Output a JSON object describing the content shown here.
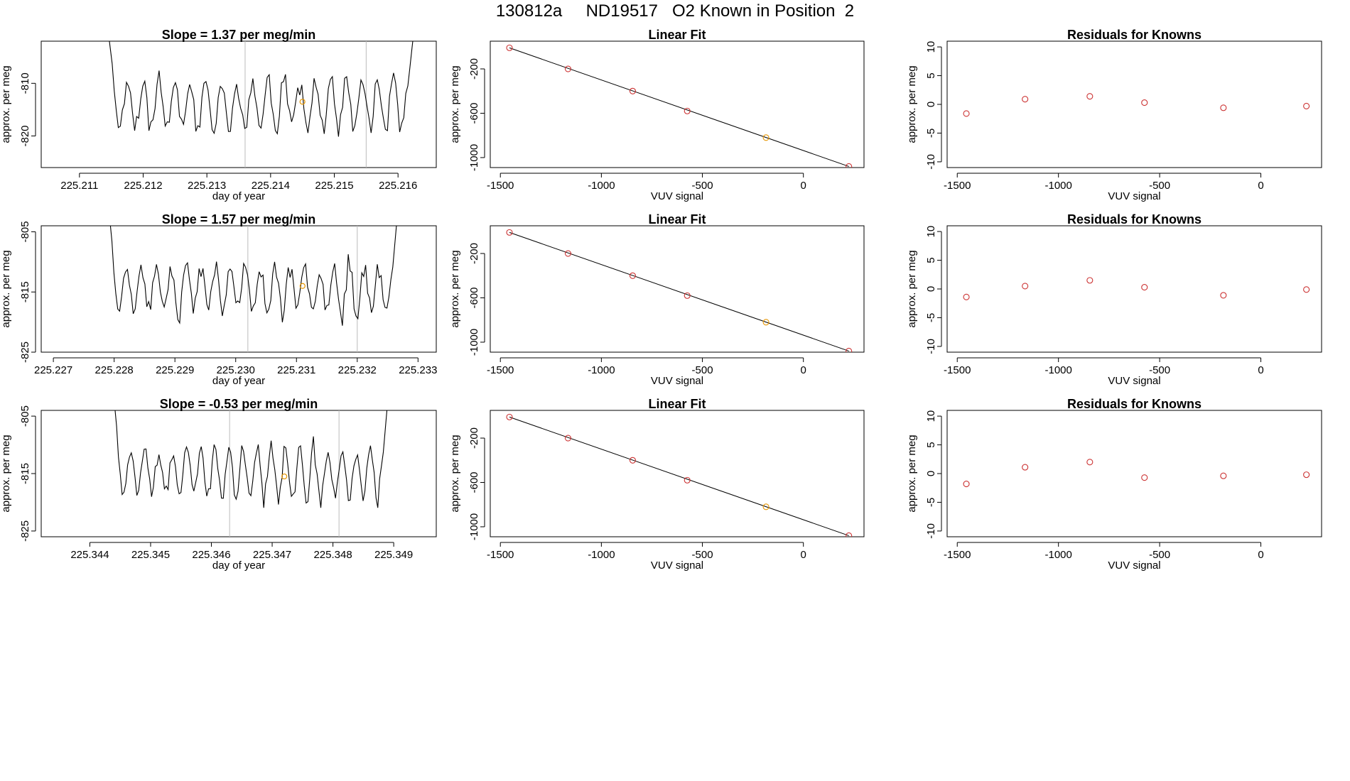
{
  "title": "130812a     ND19517   O2 Known in Position  2",
  "colors": {
    "line": "#000000",
    "fit_points": "#cc3333",
    "highlight": "#e69500",
    "vline": "#bbbbbb"
  },
  "labels": {
    "time_xlabel": "day of year",
    "ylabel": "approx. per meg",
    "vuv_xlabel": "VUV signal",
    "linear_fit_title": "Linear Fit",
    "residuals_title": "Residuals for Knowns"
  },
  "chart_data": [
    {
      "type": "line",
      "panel": "row1-timeseries",
      "title": "Slope =  1.37  per meg/min",
      "xlabel": "day of year",
      "ylabel": "approx. per meg",
      "xlim": [
        225.2104,
        225.2166
      ],
      "ylim": [
        -826,
        -802
      ],
      "xticks": [
        225.211,
        225.212,
        225.213,
        225.214,
        225.215,
        225.216
      ],
      "xtick_labels": [
        "225.211",
        "225.212",
        "225.213",
        "225.214",
        "225.215",
        "225.216"
      ],
      "yticks": [
        -820,
        -810
      ],
      "ytick_labels": [
        "-820",
        "-810"
      ],
      "vlines": [
        225.2136,
        225.2155
      ],
      "highlight_point": [
        225.2145,
        -813.5
      ],
      "x_start": 225.21145,
      "x_end": 225.21625,
      "y_start": -800,
      "y_end": -800,
      "seed": 11
    },
    {
      "type": "line",
      "panel": "row2-timeseries",
      "title": "Slope =  1.57  per meg/min",
      "xlabel": "day of year",
      "ylabel": "approx. per meg",
      "xlim": [
        225.2268,
        225.2333
      ],
      "ylim": [
        -825,
        -804
      ],
      "xticks": [
        225.227,
        225.228,
        225.229,
        225.23,
        225.231,
        225.232,
        225.233
      ],
      "xtick_labels": [
        "225.227",
        "225.228",
        "225.229",
        "225.230",
        "225.231",
        "225.232",
        "225.233"
      ],
      "yticks": [
        -825,
        -815,
        -805
      ],
      "ytick_labels": [
        "-825",
        "-815",
        "-805"
      ],
      "vlines": [
        225.2302,
        225.232
      ],
      "highlight_point": [
        225.2311,
        -814
      ],
      "x_start": 225.2279,
      "x_end": 225.23268,
      "y_start": -800,
      "y_end": -800,
      "seed": 23
    },
    {
      "type": "line",
      "panel": "row3-timeseries",
      "title": "Slope =  -0.53  per meg/min",
      "xlabel": "day of year",
      "ylabel": "approx. per meg",
      "xlim": [
        225.3432,
        225.3497
      ],
      "ylim": [
        -826,
        -804
      ],
      "xticks": [
        225.344,
        225.345,
        225.346,
        225.347,
        225.348,
        225.349
      ],
      "xtick_labels": [
        "225.344",
        "225.345",
        "225.346",
        "225.347",
        "225.348",
        "225.349"
      ],
      "yticks": [
        -825,
        -815,
        -805
      ],
      "ytick_labels": [
        "-825",
        "-815",
        "-805"
      ],
      "vlines": [
        225.3463,
        225.3481
      ],
      "highlight_point": [
        225.3472,
        -815.5
      ],
      "x_start": 225.34438,
      "x_end": 225.34892,
      "y_start": -800,
      "y_end": -800,
      "seed": 37
    },
    {
      "type": "scatter",
      "panel": "row1-linearfit",
      "title": "Linear Fit",
      "xlabel": "VUV signal",
      "ylabel": "approx. per meg",
      "xlim": [
        -1550,
        300
      ],
      "ylim": [
        -1090,
        50
      ],
      "xticks": [
        -1500,
        -1000,
        -500,
        0
      ],
      "xtick_labels": [
        "-1500",
        "-1000",
        "-500",
        "0"
      ],
      "yticks": [
        -1000,
        -600,
        -200
      ],
      "ytick_labels": [
        "-1000",
        "-600",
        "-200"
      ],
      "x": [
        -1455,
        -1165,
        -845,
        -575,
        -185,
        225
      ],
      "y": [
        -10,
        -200,
        -400,
        -580,
        -820,
        -1080
      ],
      "highlight_index": 4,
      "fit_line": [
        [
          -1455,
          -10
        ],
        [
          225,
          -1080
        ]
      ]
    },
    {
      "type": "scatter",
      "panel": "row2-linearfit",
      "title": "Linear Fit",
      "xlabel": "VUV signal",
      "ylabel": "approx. per meg",
      "xlim": [
        -1550,
        300
      ],
      "ylim": [
        -1090,
        50
      ],
      "xticks": [
        -1500,
        -1000,
        -500,
        0
      ],
      "xtick_labels": [
        "-1500",
        "-1000",
        "-500",
        "0"
      ],
      "yticks": [
        -1000,
        -600,
        -200
      ],
      "ytick_labels": [
        "-1000",
        "-600",
        "-200"
      ],
      "x": [
        -1455,
        -1165,
        -845,
        -575,
        -185,
        225
      ],
      "y": [
        -10,
        -200,
        -400,
        -580,
        -820,
        -1080
      ],
      "highlight_index": 4,
      "fit_line": [
        [
          -1455,
          -10
        ],
        [
          225,
          -1080
        ]
      ]
    },
    {
      "type": "scatter",
      "panel": "row3-linearfit",
      "title": "Linear Fit",
      "xlabel": "VUV signal",
      "ylabel": "approx. per meg",
      "xlim": [
        -1550,
        300
      ],
      "ylim": [
        -1090,
        50
      ],
      "xticks": [
        -1500,
        -1000,
        -500,
        0
      ],
      "xtick_labels": [
        "-1500",
        "-1000",
        "-500",
        "0"
      ],
      "yticks": [
        -1000,
        -600,
        -200
      ],
      "ytick_labels": [
        "-1000",
        "-600",
        "-200"
      ],
      "x": [
        -1455,
        -1165,
        -845,
        -575,
        -185,
        225
      ],
      "y": [
        -10,
        -200,
        -400,
        -580,
        -820,
        -1080
      ],
      "highlight_index": 4,
      "fit_line": [
        [
          -1455,
          -10
        ],
        [
          225,
          -1080
        ]
      ]
    },
    {
      "type": "scatter",
      "panel": "row1-residuals",
      "title": "Residuals for Knowns",
      "xlabel": "VUV signal",
      "ylabel": "approx. per meg",
      "xlim": [
        -1550,
        300
      ],
      "ylim": [
        -11,
        11
      ],
      "xticks": [
        -1500,
        -1000,
        -500,
        0
      ],
      "xtick_labels": [
        "-1500",
        "-1000",
        "-500",
        "0"
      ],
      "yticks": [
        -10,
        -5,
        0,
        5,
        10
      ],
      "ytick_labels": [
        "-10",
        "-5",
        "0",
        "5",
        "10"
      ],
      "x": [
        -1455,
        -1165,
        -845,
        -575,
        -185,
        225
      ],
      "y": [
        -1.6,
        0.9,
        1.4,
        0.3,
        -0.6,
        -0.3
      ]
    },
    {
      "type": "scatter",
      "panel": "row2-residuals",
      "title": "Residuals for Knowns",
      "xlabel": "VUV signal",
      "ylabel": "approx. per meg",
      "xlim": [
        -1550,
        300
      ],
      "ylim": [
        -11,
        11
      ],
      "xticks": [
        -1500,
        -1000,
        -500,
        0
      ],
      "xtick_labels": [
        "-1500",
        "-1000",
        "-500",
        "0"
      ],
      "yticks": [
        -10,
        -5,
        0,
        5,
        10
      ],
      "ytick_labels": [
        "-10",
        "-5",
        "0",
        "5",
        "10"
      ],
      "x": [
        -1455,
        -1165,
        -845,
        -575,
        -185,
        225
      ],
      "y": [
        -1.4,
        0.5,
        1.5,
        0.3,
        -1.1,
        -0.1
      ]
    },
    {
      "type": "scatter",
      "panel": "row3-residuals",
      "title": "Residuals for Knowns",
      "xlabel": "VUV signal",
      "ylabel": "approx. per meg",
      "xlim": [
        -1550,
        300
      ],
      "ylim": [
        -11,
        11
      ],
      "xticks": [
        -1500,
        -1000,
        -500,
        0
      ],
      "xtick_labels": [
        "-1500",
        "-1000",
        "-500",
        "0"
      ],
      "yticks": [
        -10,
        -5,
        0,
        5,
        10
      ],
      "ytick_labels": [
        "-10",
        "-5",
        "0",
        "5",
        "10"
      ],
      "x": [
        -1455,
        -1165,
        -845,
        -575,
        -185,
        225
      ],
      "y": [
        -1.8,
        1.1,
        2.0,
        -0.7,
        -0.4,
        -0.2
      ]
    }
  ]
}
